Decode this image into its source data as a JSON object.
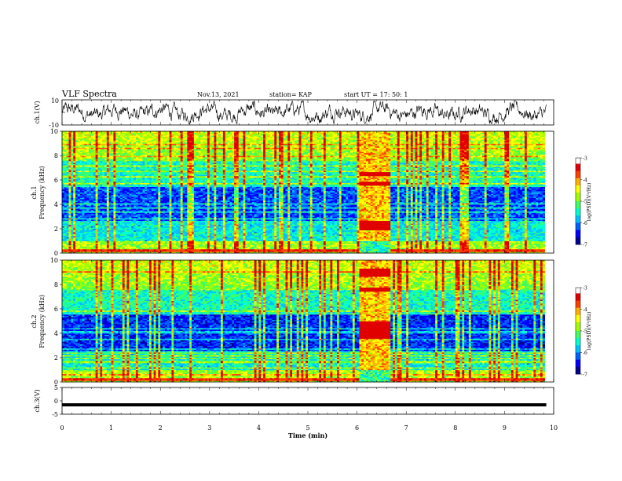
{
  "header": {
    "title": "VLF Spectra",
    "date": "Nov.13, 2021",
    "station": "station= KAP",
    "start": "start  UT =  17: 50: 1"
  },
  "chart_data": [
    {
      "type": "line",
      "panel": "ch1-waveform",
      "ylabel": "ch.1(V)",
      "ylim": [
        -10,
        10
      ],
      "y_ticks": [
        "10",
        "-10"
      ],
      "xlim": [
        0,
        10
      ],
      "series": [
        {
          "values_note_none": true,
          "points": [
            [
              0,
              3
            ],
            [
              0.5,
              -1
            ],
            [
              1,
              2
            ],
            [
              1.5,
              -2
            ],
            [
              2,
              4
            ],
            [
              2.5,
              1
            ],
            [
              3,
              -1
            ],
            [
              3.5,
              3
            ],
            [
              4,
              0
            ],
            [
              4.5,
              -2
            ],
            [
              5,
              3
            ],
            [
              5.5,
              -1
            ],
            [
              6,
              1
            ],
            [
              6.5,
              -3
            ],
            [
              7,
              2
            ],
            [
              7.5,
              0
            ],
            [
              8,
              -2
            ],
            [
              8.5,
              1
            ],
            [
              9,
              -1
            ],
            [
              9.5,
              0
            ],
            [
              9.8,
              -1
            ]
          ]
        }
      ]
    },
    {
      "type": "heatmap",
      "panel": "ch1-spectrogram",
      "ylabel": "ch.1\nFrequency (kHz)",
      "ylim": [
        0,
        10
      ],
      "y_ticks": [
        "0",
        "2",
        "4",
        "6",
        "8",
        "10"
      ],
      "xlim": [
        0,
        10
      ],
      "colorbar": {
        "label": "log(PSD)(V²/Hz)",
        "range": [
          -7,
          -3
        ],
        "ticks": [
          "-3",
          "-4",
          "-5",
          "-6",
          "-7"
        ]
      }
    },
    {
      "type": "heatmap",
      "panel": "ch2-spectrogram",
      "ylabel": "ch.2\nFrequency (kHz)",
      "ylim": [
        0,
        10
      ],
      "y_ticks": [
        "0",
        "2",
        "4",
        "6",
        "8",
        "10"
      ],
      "xlim": [
        0,
        10
      ],
      "colorbar": {
        "label": "log(PSD)(V²/Hz)",
        "range": [
          -7,
          -3
        ],
        "ticks": [
          "-3",
          "-4",
          "-5",
          "-6",
          "-7"
        ]
      }
    },
    {
      "type": "line",
      "panel": "ch3-waveform",
      "ylabel": "ch.3(V)",
      "ylim": [
        -5,
        5
      ],
      "y_ticks": [
        "5",
        "0",
        "-5"
      ],
      "xlim": [
        0,
        10
      ],
      "xlabel": "Time (min)",
      "x_ticks": [
        "0",
        "1",
        "2",
        "3",
        "4",
        "5",
        "6",
        "7",
        "8",
        "9",
        "10"
      ],
      "data_end_min": 9.85
    }
  ],
  "labels": {
    "ch1_wave_ylabel": "ch.1(V)",
    "ch1_spec_ylabel_a": "ch.1",
    "ch1_spec_ylabel_b": "Frequency (kHz)",
    "ch2_spec_ylabel_a": "ch.2",
    "ch2_spec_ylabel_b": "Frequency (kHz)",
    "ch3_wave_ylabel": "ch.3(V)",
    "xlabel": "Time (min)",
    "colorbar_label": "log(PSD)(V²/Hz)",
    "w1_ticks": [
      "10",
      "-10"
    ],
    "freq_ticks": [
      "0",
      "2",
      "4",
      "6",
      "8",
      "10"
    ],
    "w3_ticks": [
      "5",
      "0",
      "-5"
    ],
    "x_ticks": [
      "0",
      "1",
      "2",
      "3",
      "4",
      "5",
      "6",
      "7",
      "8",
      "9",
      "10"
    ],
    "cbar_ticks": [
      "-3",
      "-4",
      "-5",
      "-6",
      "-7"
    ]
  },
  "colors": {
    "colormap": [
      "#000080",
      "#0000ff",
      "#0080ff",
      "#00ffff",
      "#00ff80",
      "#80ff00",
      "#ffff00",
      "#ff8000",
      "#ff0000",
      "#ffffff"
    ],
    "trace": "#000000"
  }
}
